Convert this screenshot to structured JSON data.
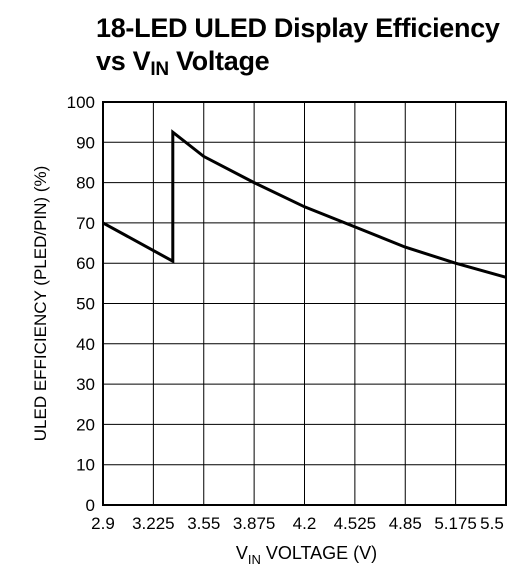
{
  "chart_data": {
    "type": "line",
    "title_line1": "18-LED ULED Display Efficiency",
    "title_line2_prefix": "vs V",
    "title_line2_sub": "IN",
    "title_line2_suffix": " Voltage",
    "ylabel": "ULED EFFICIENCY (PLED/PIN) (%)",
    "xlabel_prefix": "V",
    "xlabel_sub": "IN",
    "xlabel_suffix": " VOLTAGE (V)",
    "xlim": [
      2.9,
      5.5
    ],
    "ylim": [
      0,
      100
    ],
    "x_ticks": [
      "2.9",
      "3.225",
      "3.55",
      "3.875",
      "4.2",
      "4.525",
      "4.85",
      "5.175",
      "5.5"
    ],
    "y_ticks": [
      "0",
      "10",
      "20",
      "30",
      "40",
      "50",
      "60",
      "70",
      "80",
      "90",
      "100"
    ],
    "grid": true,
    "series": [
      {
        "x": [
          2.9,
          3.35,
          3.35,
          3.55,
          3.875,
          4.2,
          4.525,
          4.85,
          5.175,
          5.5
        ],
        "y": [
          70,
          60.5,
          92.5,
          86.5,
          80,
          74,
          69,
          64,
          60,
          56.5
        ]
      }
    ],
    "line_color": "#000000",
    "grid_color": "#000000"
  }
}
